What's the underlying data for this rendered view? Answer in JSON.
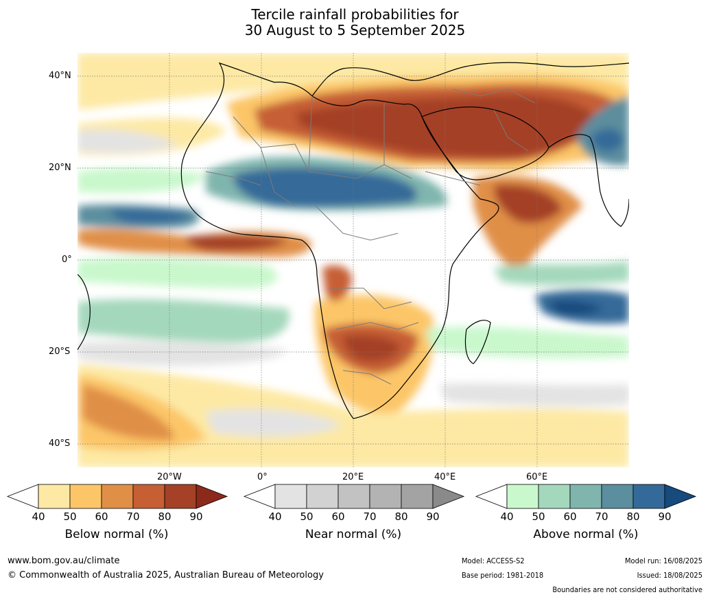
{
  "title_line1": "Tercile rainfall probabilities for",
  "title_line2": "30 August to 5 September 2025",
  "map": {
    "lat_labels": [
      "40°N",
      "20°N",
      "0°",
      "20°S",
      "40°S"
    ],
    "lon_labels": [
      "20°W",
      "0°",
      "20°E",
      "40°E",
      "60°E"
    ]
  },
  "colorbars": [
    {
      "label": "Below normal (%)",
      "ticks": [
        "40",
        "50",
        "60",
        "70",
        "80",
        "90"
      ],
      "colors": [
        "#ffffff",
        "#fde9a4",
        "#fcc668",
        "#e08f46",
        "#c65f34",
        "#a44127",
        "#8b2a1a"
      ]
    },
    {
      "label": "Near normal (%)",
      "ticks": [
        "40",
        "50",
        "60",
        "70",
        "80",
        "90"
      ],
      "colors": [
        "#ffffff",
        "#e3e3e3",
        "#d2d2d2",
        "#c2c2c2",
        "#b3b3b3",
        "#a3a3a3",
        "#8a8a8a"
      ]
    },
    {
      "label": "Above normal (%)",
      "ticks": [
        "40",
        "50",
        "60",
        "70",
        "80",
        "90"
      ],
      "colors": [
        "#ffffff",
        "#c9f8cc",
        "#a4d8bc",
        "#80b5ae",
        "#5b8e9e",
        "#346a99",
        "#174a7d"
      ]
    }
  ],
  "footer": {
    "website": "www.bom.gov.au/climate",
    "copyright": "© Commonwealth of Australia 2025, Australian Bureau of Meteorology",
    "model": "Model: ACCESS-S2",
    "base_period": "Base period: 1981-2018",
    "model_run": "Model run: 16/08/2025",
    "issued": "Issued: 18/08/2025",
    "disclaimer": "Boundaries are not considered authoritative"
  }
}
